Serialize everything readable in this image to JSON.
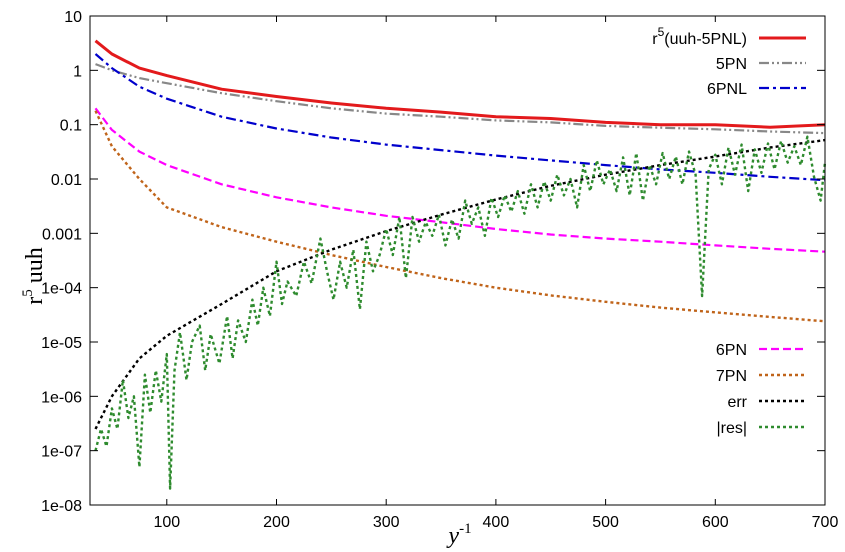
{
  "chart_data": {
    "type": "line",
    "title": "",
    "xlabel": "y",
    "xlabel_sup": "-1",
    "ylabel": "r",
    "ylabel_sup": "5",
    "ylabel_rest": " uuh",
    "y_scale": "log",
    "xlim": [
      30,
      700
    ],
    "ylim": [
      1e-08,
      10
    ],
    "xticks": [
      100,
      200,
      300,
      400,
      500,
      600,
      700
    ],
    "xtick_labels": [
      "100",
      "200",
      "300",
      "400",
      "500",
      "600",
      "700"
    ],
    "yticks": [
      1e-08,
      1e-07,
      1e-06,
      1e-05,
      0.0001,
      0.001,
      0.01,
      0.1,
      1,
      10
    ],
    "ytick_labels": [
      "1e-08",
      "1e-07",
      "1e-06",
      "1e-05",
      "1e-04",
      "0.001",
      "0.01",
      "0.1",
      "1",
      "10"
    ],
    "grid": false,
    "legend": [
      {
        "label_main": "r",
        "label_sup": "5",
        "label_rest": "(uuh-5PNL)",
        "placement": "top-right"
      },
      {
        "label_main": "5PN",
        "placement": "top-right"
      },
      {
        "label_main": "6PNL",
        "placement": "top-right"
      },
      {
        "label_main": "6PN",
        "placement": "bottom-right"
      },
      {
        "label_main": "7PN",
        "placement": "bottom-right"
      },
      {
        "label_main": "err",
        "placement": "bottom-right"
      },
      {
        "label_main": "|res|",
        "placement": "bottom-right"
      }
    ],
    "series": [
      {
        "name": "r5(uuh-5PNL)",
        "color": "#e31a1c",
        "dash": "solid",
        "points": [
          [
            35,
            3.5
          ],
          [
            50,
            2.0
          ],
          [
            75,
            1.1
          ],
          [
            100,
            0.8
          ],
          [
            150,
            0.45
          ],
          [
            200,
            0.33
          ],
          [
            250,
            0.25
          ],
          [
            300,
            0.2
          ],
          [
            350,
            0.17
          ],
          [
            400,
            0.14
          ],
          [
            450,
            0.13
          ],
          [
            500,
            0.11
          ],
          [
            550,
            0.1
          ],
          [
            600,
            0.1
          ],
          [
            650,
            0.09
          ],
          [
            700,
            0.1
          ]
        ]
      },
      {
        "name": "5PN",
        "color": "#888888",
        "dash": "dash-dot-dot",
        "points": [
          [
            35,
            1.3
          ],
          [
            50,
            1.0
          ],
          [
            75,
            0.72
          ],
          [
            100,
            0.58
          ],
          [
            150,
            0.38
          ],
          [
            200,
            0.27
          ],
          [
            250,
            0.2
          ],
          [
            300,
            0.16
          ],
          [
            350,
            0.14
          ],
          [
            400,
            0.12
          ],
          [
            450,
            0.11
          ],
          [
            500,
            0.095
          ],
          [
            550,
            0.088
          ],
          [
            600,
            0.082
          ],
          [
            650,
            0.075
          ],
          [
            700,
            0.07
          ]
        ]
      },
      {
        "name": "6PNL",
        "color": "#0000cc",
        "dash": "dash-dot",
        "points": [
          [
            35,
            2.0
          ],
          [
            50,
            1.1
          ],
          [
            75,
            0.5
          ],
          [
            100,
            0.3
          ],
          [
            150,
            0.14
          ],
          [
            200,
            0.085
          ],
          [
            250,
            0.058
          ],
          [
            300,
            0.043
          ],
          [
            350,
            0.034
          ],
          [
            400,
            0.027
          ],
          [
            450,
            0.022
          ],
          [
            500,
            0.018
          ],
          [
            550,
            0.015
          ],
          [
            600,
            0.013
          ],
          [
            650,
            0.011
          ],
          [
            700,
            0.0095
          ]
        ]
      },
      {
        "name": "6PN",
        "color": "#ff00ff",
        "dash": "dash",
        "points": [
          [
            35,
            0.2
          ],
          [
            50,
            0.08
          ],
          [
            75,
            0.032
          ],
          [
            100,
            0.018
          ],
          [
            150,
            0.008
          ],
          [
            200,
            0.0046
          ],
          [
            250,
            0.003
          ],
          [
            300,
            0.0021
          ],
          [
            350,
            0.0016
          ],
          [
            400,
            0.0012
          ],
          [
            450,
            0.00095
          ],
          [
            500,
            0.0008
          ],
          [
            550,
            0.0007
          ],
          [
            600,
            0.0006
          ],
          [
            650,
            0.00052
          ],
          [
            700,
            0.00046
          ]
        ]
      },
      {
        "name": "7PN",
        "color": "#c0641a",
        "dash": "dot",
        "points": [
          [
            35,
            0.18
          ],
          [
            50,
            0.04
          ],
          [
            75,
            0.01
          ],
          [
            100,
            0.003
          ],
          [
            150,
            0.0013
          ],
          [
            200,
            0.0007
          ],
          [
            250,
            0.0004
          ],
          [
            300,
            0.00024
          ],
          [
            350,
            0.00015
          ],
          [
            400,
            0.0001
          ],
          [
            450,
            7.2e-05
          ],
          [
            500,
            5.5e-05
          ],
          [
            550,
            4.3e-05
          ],
          [
            600,
            3.5e-05
          ],
          [
            650,
            2.9e-05
          ],
          [
            700,
            2.4e-05
          ]
        ]
      },
      {
        "name": "err",
        "color": "#000000",
        "dash": "dot",
        "points": [
          [
            35,
            2.5e-07
          ],
          [
            50,
            1e-06
          ],
          [
            75,
            5e-06
          ],
          [
            100,
            1.3e-05
          ],
          [
            150,
            5e-05
          ],
          [
            200,
            0.0002
          ],
          [
            250,
            0.0005
          ],
          [
            300,
            0.0011
          ],
          [
            350,
            0.0022
          ],
          [
            400,
            0.0042
          ],
          [
            450,
            0.0075
          ],
          [
            500,
            0.012
          ],
          [
            550,
            0.018
          ],
          [
            600,
            0.026
          ],
          [
            650,
            0.038
          ],
          [
            700,
            0.052
          ]
        ]
      },
      {
        "name": "|res|",
        "color": "#2e8b2e",
        "dash": "dot",
        "points": [
          [
            35,
            1e-07
          ],
          [
            40,
            2.5e-07
          ],
          [
            45,
            1.2e-07
          ],
          [
            50,
            6e-07
          ],
          [
            55,
            2.5e-07
          ],
          [
            60,
            2e-06
          ],
          [
            65,
            4e-07
          ],
          [
            70,
            1e-06
          ],
          [
            75,
            5e-08
          ],
          [
            80,
            2.5e-06
          ],
          [
            85,
            5e-07
          ],
          [
            90,
            3e-06
          ],
          [
            95,
            8e-07
          ],
          [
            100,
            6e-06
          ],
          [
            103,
            2e-08
          ],
          [
            107,
            3e-06
          ],
          [
            112,
            1.5e-05
          ],
          [
            118,
            2e-06
          ],
          [
            123,
            1e-05
          ],
          [
            130,
            2e-05
          ],
          [
            135,
            3e-06
          ],
          [
            140,
            1.4e-05
          ],
          [
            148,
            4e-06
          ],
          [
            155,
            3e-05
          ],
          [
            160,
            5e-06
          ],
          [
            165,
            2.5e-05
          ],
          [
            172,
            1e-05
          ],
          [
            178,
            6e-05
          ],
          [
            183,
            2e-05
          ],
          [
            188,
            0.0001
          ],
          [
            194,
            3e-05
          ],
          [
            200,
            0.0003
          ],
          [
            205,
            5e-05
          ],
          [
            210,
            0.00013
          ],
          [
            218,
            7e-05
          ],
          [
            225,
            0.0003
          ],
          [
            232,
            0.00012
          ],
          [
            240,
            0.0008
          ],
          [
            246,
            0.0002
          ],
          [
            252,
            6e-05
          ],
          [
            258,
            0.0003
          ],
          [
            264,
            0.0001
          ],
          [
            270,
            0.0005
          ],
          [
            276,
            4e-05
          ],
          [
            282,
            0.0007
          ],
          [
            288,
            0.0002
          ],
          [
            294,
            0.0004
          ],
          [
            300,
            0.0012
          ],
          [
            306,
            0.0004
          ],
          [
            312,
            0.002
          ],
          [
            318,
            0.00015
          ],
          [
            324,
            0.002
          ],
          [
            330,
            0.0007
          ],
          [
            336,
            0.0016
          ],
          [
            342,
            0.0009
          ],
          [
            348,
            0.0022
          ],
          [
            354,
            0.0006
          ],
          [
            360,
            0.0018
          ],
          [
            366,
            0.0008
          ],
          [
            372,
            0.004
          ],
          [
            378,
            0.0015
          ],
          [
            384,
            0.003
          ],
          [
            390,
            0.0009
          ],
          [
            396,
            0.0045
          ],
          [
            402,
            0.002
          ],
          [
            408,
            0.005
          ],
          [
            414,
            0.0025
          ],
          [
            420,
            0.006
          ],
          [
            426,
            0.0023
          ],
          [
            432,
            0.008
          ],
          [
            438,
            0.003
          ],
          [
            444,
            0.009
          ],
          [
            450,
            0.004
          ],
          [
            456,
            0.012
          ],
          [
            462,
            0.005
          ],
          [
            468,
            0.01
          ],
          [
            474,
            0.003
          ],
          [
            480,
            0.018
          ],
          [
            486,
            0.006
          ],
          [
            492,
            0.022
          ],
          [
            498,
            0.008
          ],
          [
            504,
            0.015
          ],
          [
            510,
            0.006
          ],
          [
            516,
            0.025
          ],
          [
            522,
            0.005
          ],
          [
            528,
            0.03
          ],
          [
            534,
            0.004
          ],
          [
            540,
            0.018
          ],
          [
            546,
            0.008
          ],
          [
            552,
            0.03
          ],
          [
            558,
            0.01
          ],
          [
            564,
            0.026
          ],
          [
            570,
            0.008
          ],
          [
            576,
            0.032
          ],
          [
            582,
            0.012
          ],
          [
            588,
            7e-05
          ],
          [
            594,
            0.015
          ],
          [
            600,
            0.028
          ],
          [
            606,
            0.008
          ],
          [
            612,
            0.038
          ],
          [
            618,
            0.012
          ],
          [
            624,
            0.043
          ],
          [
            630,
            0.006
          ],
          [
            636,
            0.035
          ],
          [
            642,
            0.013
          ],
          [
            648,
            0.045
          ],
          [
            654,
            0.015
          ],
          [
            660,
            0.05
          ],
          [
            666,
            0.02
          ],
          [
            672,
            0.04
          ],
          [
            678,
            0.018
          ],
          [
            684,
            0.06
          ],
          [
            690,
            0.011
          ],
          [
            696,
            0.004
          ],
          [
            700,
            0.02
          ]
        ]
      }
    ]
  }
}
